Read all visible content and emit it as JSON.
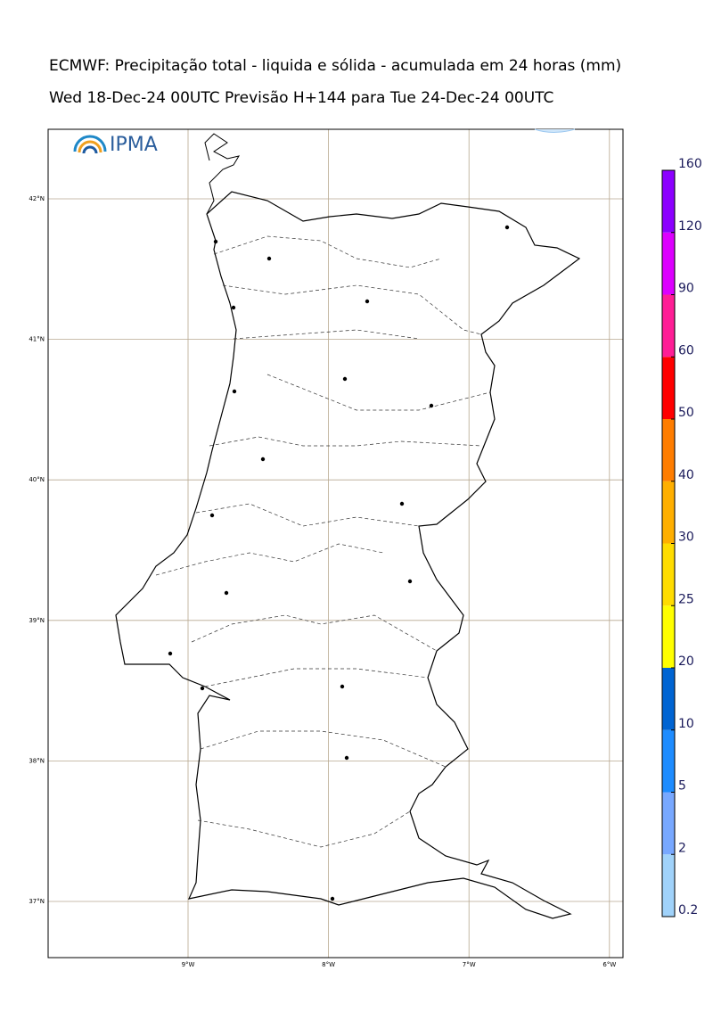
{
  "header": {
    "title": "ECMWF: Precipitação total - liquida e sólida - acumulada em 24 horas (mm)",
    "subtitle": "Wed 18-Dec-24 00UTC Previsão H+144 para Tue 24-Dec-24 00UTC",
    "logo": "IPMA"
  },
  "map": {
    "lat_lines": [
      {
        "value": 42,
        "label": "42°N"
      },
      {
        "value": 41,
        "label": "41°N"
      },
      {
        "value": 40,
        "label": "40°N"
      },
      {
        "value": 39,
        "label": "39°N"
      },
      {
        "value": 38,
        "label": "38°N"
      },
      {
        "value": 37,
        "label": "37°N"
      }
    ],
    "lon_lines": [
      {
        "value": -9,
        "label": "9°W"
      },
      {
        "value": -8,
        "label": "8°W"
      },
      {
        "value": -7,
        "label": "7°W"
      },
      {
        "value": -6,
        "label": "6°W"
      }
    ]
  },
  "colorbar": {
    "levels": [
      0.2,
      2,
      5,
      10,
      20,
      25,
      30,
      40,
      50,
      60,
      90,
      120,
      160
    ],
    "colors": [
      "#a0d2fa",
      "#78a8ff",
      "#1e8cff",
      "#0064d2",
      "#ffff00",
      "#ffdc00",
      "#ffaf00",
      "#ff7d00",
      "#ff0000",
      "#ff1e96",
      "#dc00ff",
      "#8c00ff"
    ]
  }
}
